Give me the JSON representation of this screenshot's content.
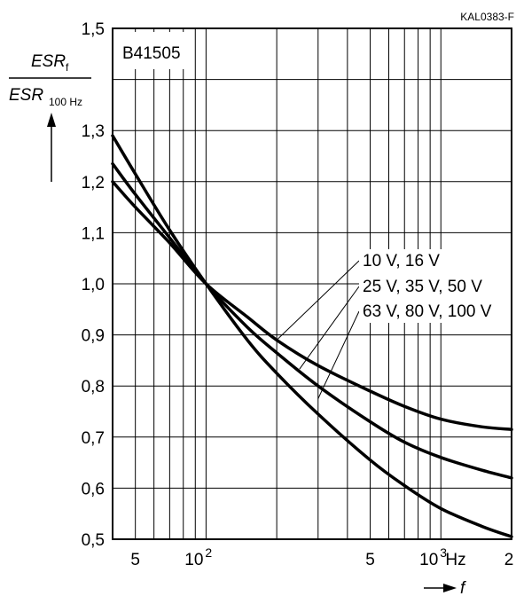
{
  "chart_data": {
    "type": "line",
    "code": "KAL0383-F",
    "part_number": "B41505",
    "y_label": {
      "numerator": "ESR",
      "numerator_sub": "f",
      "denominator": "ESR",
      "denominator_sub": "100 Hz"
    },
    "x_label": "f",
    "x_unit": "Hz",
    "x_scale": "log",
    "xlim": [
      40,
      2000
    ],
    "ylim": [
      0.5,
      1.5
    ],
    "x_tick_labels": [
      {
        "x": 50,
        "text": "5"
      },
      {
        "x": 100,
        "base": "10",
        "exp": "2"
      },
      {
        "x": 500,
        "text": "5"
      },
      {
        "x": 1000,
        "base": "10",
        "exp": "3"
      },
      {
        "x": 2000,
        "text": "2"
      }
    ],
    "y_ticks": [
      "0,5",
      "0,6",
      "0,7",
      "0,8",
      "0,9",
      "1,0",
      "1,1",
      "1,2",
      "1,3",
      "1,5"
    ],
    "y_tick_values": [
      0.5,
      0.6,
      0.7,
      0.8,
      0.9,
      1.0,
      1.1,
      1.2,
      1.3,
      1.5
    ],
    "grid": true,
    "series": [
      {
        "name": "10 V, 16 V",
        "x": [
          40,
          50,
          70,
          100,
          150,
          200,
          300,
          500,
          700,
          1000,
          1500,
          2000
        ],
        "y": [
          1.2,
          1.15,
          1.08,
          1.0,
          0.935,
          0.89,
          0.84,
          0.79,
          0.76,
          0.735,
          0.72,
          0.715
        ]
      },
      {
        "name": "25 V, 35 V, 50 V",
        "x": [
          40,
          50,
          70,
          100,
          150,
          200,
          300,
          500,
          700,
          1000,
          1500,
          2000
        ],
        "y": [
          1.235,
          1.175,
          1.09,
          1.0,
          0.915,
          0.865,
          0.8,
          0.73,
          0.69,
          0.66,
          0.635,
          0.62
        ]
      },
      {
        "name": "63 V, 80 V, 100 V",
        "x": [
          40,
          50,
          70,
          100,
          150,
          200,
          300,
          500,
          700,
          1000,
          1500,
          2000
        ],
        "y": [
          1.29,
          1.215,
          1.105,
          1.0,
          0.89,
          0.825,
          0.745,
          0.655,
          0.605,
          0.56,
          0.525,
          0.505
        ]
      }
    ]
  }
}
